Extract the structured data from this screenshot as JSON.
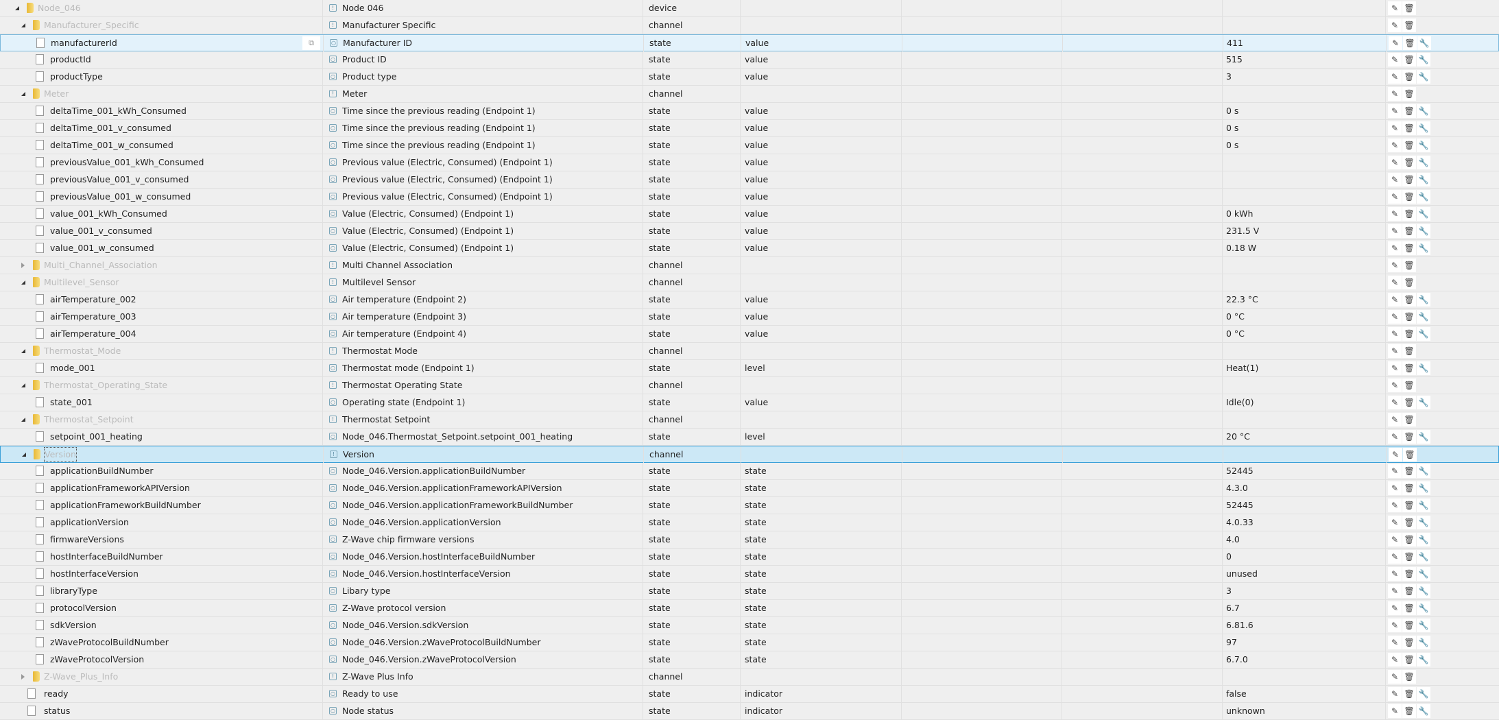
{
  "colors": {
    "selected_bg": "#e3f2fb",
    "focused_bg": "#cce8f6",
    "accent": "#3aa0d8"
  },
  "rows": [
    {
      "name": "Node_046",
      "level": 0,
      "kind": "folder",
      "open": true,
      "title": "Node 046",
      "type": "device",
      "role": "",
      "value": "",
      "icon": "device-icon"
    },
    {
      "name": "Manufacturer_Specific",
      "level": 1,
      "kind": "folder",
      "open": true,
      "title": "Manufacturer Specific",
      "type": "channel",
      "role": "",
      "value": "",
      "icon": "channel-icon"
    },
    {
      "name": "manufacturerId",
      "level": 2,
      "kind": "file",
      "title": "Manufacturer ID",
      "type": "state",
      "role": "value",
      "value": "411",
      "icon": "state-icon",
      "selected": "sel1"
    },
    {
      "name": "productId",
      "level": 2,
      "kind": "file",
      "title": "Product ID",
      "type": "state",
      "role": "value",
      "value": "515",
      "icon": "state-icon"
    },
    {
      "name": "productType",
      "level": 2,
      "kind": "file",
      "title": "Product type",
      "type": "state",
      "role": "value",
      "value": "3",
      "icon": "state-icon"
    },
    {
      "name": "Meter",
      "level": 1,
      "kind": "folder",
      "open": true,
      "title": "Meter",
      "type": "channel",
      "role": "",
      "value": "",
      "icon": "channel-icon"
    },
    {
      "name": "deltaTime_001_kWh_Consumed",
      "level": 2,
      "kind": "file",
      "title": "Time since the previous reading (Endpoint 1)",
      "type": "state",
      "role": "value",
      "value": "0 s",
      "icon": "state-icon"
    },
    {
      "name": "deltaTime_001_v_consumed",
      "level": 2,
      "kind": "file",
      "title": "Time since the previous reading (Endpoint 1)",
      "type": "state",
      "role": "value",
      "value": "0 s",
      "icon": "state-icon"
    },
    {
      "name": "deltaTime_001_w_consumed",
      "level": 2,
      "kind": "file",
      "title": "Time since the previous reading (Endpoint 1)",
      "type": "state",
      "role": "value",
      "value": "0 s",
      "icon": "state-icon"
    },
    {
      "name": "previousValue_001_kWh_Consumed",
      "level": 2,
      "kind": "file",
      "title": "Previous value (Electric, Consumed) (Endpoint 1)",
      "type": "state",
      "role": "value",
      "value": "",
      "icon": "state-icon"
    },
    {
      "name": "previousValue_001_v_consumed",
      "level": 2,
      "kind": "file",
      "title": "Previous value (Electric, Consumed) (Endpoint 1)",
      "type": "state",
      "role": "value",
      "value": "",
      "icon": "state-icon"
    },
    {
      "name": "previousValue_001_w_consumed",
      "level": 2,
      "kind": "file",
      "title": "Previous value (Electric, Consumed) (Endpoint 1)",
      "type": "state",
      "role": "value",
      "value": "",
      "icon": "state-icon"
    },
    {
      "name": "value_001_kWh_Consumed",
      "level": 2,
      "kind": "file",
      "title": "Value (Electric, Consumed) (Endpoint 1)",
      "type": "state",
      "role": "value",
      "value": "0 kWh",
      "icon": "state-icon"
    },
    {
      "name": "value_001_v_consumed",
      "level": 2,
      "kind": "file",
      "title": "Value (Electric, Consumed) (Endpoint 1)",
      "type": "state",
      "role": "value",
      "value": "231.5 V",
      "icon": "state-icon"
    },
    {
      "name": "value_001_w_consumed",
      "level": 2,
      "kind": "file",
      "title": "Value (Electric, Consumed) (Endpoint 1)",
      "type": "state",
      "role": "value",
      "value": "0.18 W",
      "icon": "state-icon"
    },
    {
      "name": "Multi_Channel_Association",
      "level": 1,
      "kind": "folder",
      "open": false,
      "title": "Multi Channel Association",
      "type": "channel",
      "role": "",
      "value": "",
      "icon": "channel-icon"
    },
    {
      "name": "Multilevel_Sensor",
      "level": 1,
      "kind": "folder",
      "open": true,
      "title": "Multilevel Sensor",
      "type": "channel",
      "role": "",
      "value": "",
      "icon": "channel-icon"
    },
    {
      "name": "airTemperature_002",
      "level": 2,
      "kind": "file",
      "title": "Air temperature (Endpoint 2)",
      "type": "state",
      "role": "value",
      "value": "22.3 °C",
      "icon": "state-icon"
    },
    {
      "name": "airTemperature_003",
      "level": 2,
      "kind": "file",
      "title": "Air temperature (Endpoint 3)",
      "type": "state",
      "role": "value",
      "value": "0 °C",
      "icon": "state-icon"
    },
    {
      "name": "airTemperature_004",
      "level": 2,
      "kind": "file",
      "title": "Air temperature (Endpoint 4)",
      "type": "state",
      "role": "value",
      "value": "0 °C",
      "icon": "state-icon"
    },
    {
      "name": "Thermostat_Mode",
      "level": 1,
      "kind": "folder",
      "open": true,
      "title": "Thermostat Mode",
      "type": "channel",
      "role": "",
      "value": "",
      "icon": "channel-icon"
    },
    {
      "name": "mode_001",
      "level": 2,
      "kind": "file",
      "title": "Thermostat mode (Endpoint 1)",
      "type": "state",
      "role": "level",
      "value": "Heat(1)",
      "icon": "state-icon"
    },
    {
      "name": "Thermostat_Operating_State",
      "level": 1,
      "kind": "folder",
      "open": true,
      "title": "Thermostat Operating State",
      "type": "channel",
      "role": "",
      "value": "",
      "icon": "channel-icon"
    },
    {
      "name": "state_001",
      "level": 2,
      "kind": "file",
      "title": "Operating state (Endpoint 1)",
      "type": "state",
      "role": "value",
      "value": "Idle(0)",
      "icon": "state-icon"
    },
    {
      "name": "Thermostat_Setpoint",
      "level": 1,
      "kind": "folder",
      "open": true,
      "title": "Thermostat Setpoint",
      "type": "channel",
      "role": "",
      "value": "",
      "icon": "channel-icon"
    },
    {
      "name": "setpoint_001_heating",
      "level": 2,
      "kind": "file",
      "title": "Node_046.Thermostat_Setpoint.setpoint_001_heating",
      "type": "state",
      "role": "level",
      "value": "20 °C",
      "icon": "state-icon"
    },
    {
      "name": "Version",
      "level": 1,
      "kind": "folder",
      "open": true,
      "title": "Version",
      "type": "channel",
      "role": "",
      "value": "",
      "icon": "channel-icon",
      "selected": "sel2"
    },
    {
      "name": "applicationBuildNumber",
      "level": 2,
      "kind": "file",
      "title": "Node_046.Version.applicationBuildNumber",
      "type": "state",
      "role": "state",
      "value": "52445",
      "icon": "state-icon"
    },
    {
      "name": "applicationFrameworkAPIVersion",
      "level": 2,
      "kind": "file",
      "title": "Node_046.Version.applicationFrameworkAPIVersion",
      "type": "state",
      "role": "state",
      "value": "4.3.0",
      "icon": "state-icon"
    },
    {
      "name": "applicationFrameworkBuildNumber",
      "level": 2,
      "kind": "file",
      "title": "Node_046.Version.applicationFrameworkBuildNumber",
      "type": "state",
      "role": "state",
      "value": "52445",
      "icon": "state-icon"
    },
    {
      "name": "applicationVersion",
      "level": 2,
      "kind": "file",
      "title": "Node_046.Version.applicationVersion",
      "type": "state",
      "role": "state",
      "value": "4.0.33",
      "icon": "state-icon"
    },
    {
      "name": "firmwareVersions",
      "level": 2,
      "kind": "file",
      "title": "Z-Wave chip firmware versions",
      "type": "state",
      "role": "state",
      "value": "4.0",
      "icon": "state-icon"
    },
    {
      "name": "hostInterfaceBuildNumber",
      "level": 2,
      "kind": "file",
      "title": "Node_046.Version.hostInterfaceBuildNumber",
      "type": "state",
      "role": "state",
      "value": "0",
      "icon": "state-icon"
    },
    {
      "name": "hostInterfaceVersion",
      "level": 2,
      "kind": "file",
      "title": "Node_046.Version.hostInterfaceVersion",
      "type": "state",
      "role": "state",
      "value": "unused",
      "icon": "state-icon"
    },
    {
      "name": "libraryType",
      "level": 2,
      "kind": "file",
      "title": "Libary type",
      "type": "state",
      "role": "state",
      "value": "3",
      "icon": "state-icon"
    },
    {
      "name": "protocolVersion",
      "level": 2,
      "kind": "file",
      "title": "Z-Wave protocol version",
      "type": "state",
      "role": "state",
      "value": "6.7",
      "icon": "state-icon"
    },
    {
      "name": "sdkVersion",
      "level": 2,
      "kind": "file",
      "title": "Node_046.Version.sdkVersion",
      "type": "state",
      "role": "state",
      "value": "6.81.6",
      "icon": "state-icon"
    },
    {
      "name": "zWaveProtocolBuildNumber",
      "level": 2,
      "kind": "file",
      "title": "Node_046.Version.zWaveProtocolBuildNumber",
      "type": "state",
      "role": "state",
      "value": "97",
      "icon": "state-icon"
    },
    {
      "name": "zWaveProtocolVersion",
      "level": 2,
      "kind": "file",
      "title": "Node_046.Version.zWaveProtocolVersion",
      "type": "state",
      "role": "state",
      "value": "6.7.0",
      "icon": "state-icon"
    },
    {
      "name": "Z-Wave_Plus_Info",
      "level": 1,
      "kind": "folder",
      "open": false,
      "title": "Z-Wave Plus Info",
      "type": "channel",
      "role": "",
      "value": "",
      "icon": "channel-icon"
    },
    {
      "name": "ready",
      "level": 1,
      "kind": "file",
      "title": "Ready to use",
      "type": "state",
      "role": "indicator",
      "value": "false",
      "icon": "state-icon"
    },
    {
      "name": "status",
      "level": 1,
      "kind": "file",
      "title": "Node status",
      "type": "state",
      "role": "indicator",
      "value": "unknown",
      "icon": "state-icon"
    }
  ],
  "actions": {
    "edit": "✎",
    "delete": "🗑",
    "settings": "🔧",
    "copy": "⧉"
  }
}
